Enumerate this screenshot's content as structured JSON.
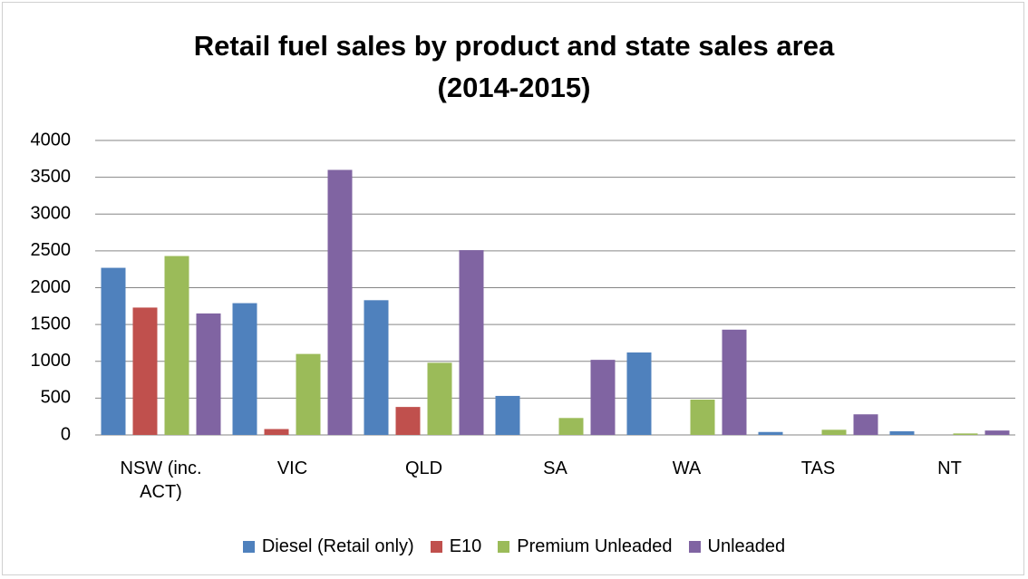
{
  "chart_data": {
    "type": "bar",
    "title": "Retail fuel sales by product and state sales area (2014-2015)",
    "categories": [
      "NSW (inc. ACT)",
      "VIC",
      "QLD",
      "SA",
      "WA",
      "TAS",
      "NT"
    ],
    "series": [
      {
        "name": "Diesel (Retail only)",
        "color": "#4f81bd",
        "values": [
          2270,
          1790,
          1830,
          530,
          1120,
          40,
          50
        ]
      },
      {
        "name": "E10",
        "color": "#c0504d",
        "values": [
          1730,
          80,
          380,
          0,
          0,
          0,
          0
        ]
      },
      {
        "name": "Premium Unleaded",
        "color": "#9bbb59",
        "values": [
          2430,
          1100,
          980,
          230,
          480,
          70,
          20
        ]
      },
      {
        "name": "Unleaded",
        "color": "#8064a2",
        "values": [
          1650,
          3600,
          2510,
          1020,
          1430,
          280,
          60
        ]
      }
    ],
    "ylim": [
      0,
      4000
    ],
    "yticks": [
      0,
      500,
      1000,
      1500,
      2000,
      2500,
      3000,
      3500,
      4000
    ],
    "grid": true,
    "legend": "bottom"
  }
}
